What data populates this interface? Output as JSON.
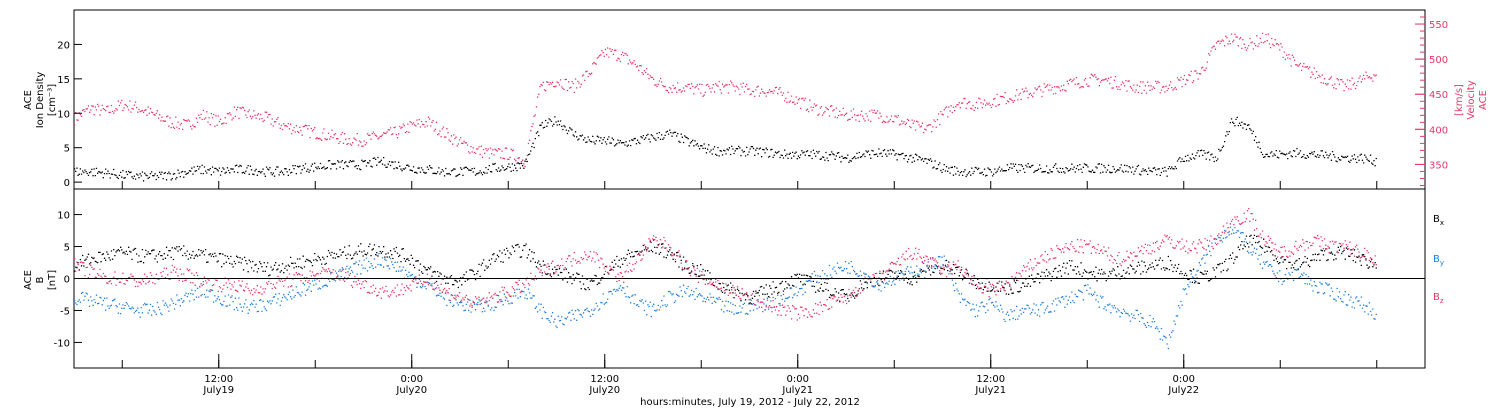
{
  "chart_data": [
    {
      "type": "scatter",
      "panel": "top",
      "ylabel_left_lines": [
        "ACE",
        "Ion Density",
        "[cm⁻³]"
      ],
      "ylabel_right_lines": [
        "ACE",
        "Velocity",
        "[km/s]"
      ],
      "ylim_left": [
        -1,
        25
      ],
      "ylim_right": [
        315,
        570
      ],
      "yticks_left": [
        0,
        5,
        10,
        15,
        20
      ],
      "yticks_right": [
        350,
        400,
        450,
        500,
        550
      ],
      "colors": {
        "density": "#000000",
        "velocity": "#e8376a"
      },
      "series": [
        {
          "axis": "left",
          "color": "#000000",
          "hours": [
            0,
            1,
            2,
            3,
            4,
            5,
            6,
            7,
            8,
            9,
            10,
            11,
            12,
            13,
            14,
            15,
            16,
            17,
            18,
            19,
            20,
            21,
            22,
            23,
            24,
            25,
            26,
            27,
            28,
            29,
            30,
            31,
            32,
            33,
            34,
            35,
            36,
            37,
            38,
            39,
            40,
            41,
            42,
            43,
            44,
            45,
            46,
            47,
            48,
            49,
            50,
            51,
            52,
            53,
            54,
            55,
            56,
            57,
            58,
            59,
            60,
            61,
            62,
            63,
            64,
            65,
            66,
            67,
            68,
            69,
            70,
            71,
            72,
            73,
            74,
            75,
            76,
            77,
            78,
            79,
            80,
            81
          ],
          "values": [
            1.5,
            1.5,
            1.3,
            1.0,
            0.8,
            0.8,
            1.0,
            1.5,
            1.8,
            1.5,
            1.8,
            1.8,
            1.5,
            1.5,
            2.0,
            2.2,
            2.5,
            2.5,
            2.5,
            3.0,
            2.5,
            2.0,
            1.8,
            1.5,
            1.5,
            1.5,
            2.0,
            2.2,
            2.5,
            8.0,
            9.0,
            7.0,
            6.0,
            6.0,
            5.5,
            6.0,
            6.5,
            7.0,
            6.0,
            5.0,
            4.5,
            4.5,
            4.5,
            4.3,
            4.0,
            4.0,
            4.0,
            3.8,
            3.5,
            4.0,
            4.2,
            4.0,
            3.5,
            3.0,
            2.0,
            1.5,
            1.5,
            1.5,
            2.0,
            2.0,
            2.0,
            2.0,
            2.0,
            2.0,
            2.0,
            2.0,
            1.8,
            1.5,
            1.5,
            3.5,
            4.0,
            3.5,
            9.0,
            8.0,
            4.0,
            4.0,
            4.2,
            4.0,
            3.8,
            3.5,
            3.5,
            3.0
          ]
        },
        {
          "axis": "right",
          "color": "#e8376a",
          "hours": [
            0,
            1,
            2,
            3,
            4,
            5,
            6,
            7,
            8,
            9,
            10,
            11,
            12,
            13,
            14,
            15,
            16,
            17,
            18,
            19,
            20,
            21,
            22,
            23,
            24,
            25,
            26,
            27,
            28,
            29,
            30,
            31,
            32,
            33,
            34,
            35,
            36,
            37,
            38,
            39,
            40,
            41,
            42,
            43,
            44,
            45,
            46,
            47,
            48,
            49,
            50,
            51,
            52,
            53,
            54,
            55,
            56,
            57,
            58,
            59,
            60,
            61,
            62,
            63,
            64,
            65,
            66,
            67,
            68,
            69,
            70,
            71,
            72,
            73,
            74,
            75,
            76,
            77,
            78,
            79,
            80,
            81
          ],
          "values": [
            415,
            430,
            425,
            435,
            430,
            420,
            410,
            405,
            420,
            410,
            425,
            420,
            415,
            405,
            400,
            395,
            390,
            385,
            385,
            390,
            395,
            405,
            410,
            395,
            380,
            370,
            365,
            365,
            355,
            460,
            470,
            460,
            480,
            510,
            505,
            490,
            470,
            460,
            460,
            455,
            460,
            460,
            455,
            455,
            450,
            440,
            430,
            425,
            420,
            420,
            420,
            415,
            405,
            400,
            420,
            440,
            435,
            440,
            445,
            450,
            455,
            460,
            465,
            470,
            470,
            465,
            460,
            460,
            460,
            470,
            480,
            520,
            530,
            520,
            530,
            515,
            490,
            480,
            470,
            460,
            470,
            480
          ]
        }
      ]
    },
    {
      "type": "scatter",
      "panel": "bottom",
      "ylabel_left_lines": [
        "ACE",
        "B",
        "[nT]"
      ],
      "ylim": [
        -14,
        14
      ],
      "yticks": [
        -10,
        -5,
        0,
        5,
        10
      ],
      "x_ticks": [
        {
          "hour": 12,
          "time": "12:00",
          "date": "July19"
        },
        {
          "hour": 24,
          "time": "0:00",
          "date": "July20"
        },
        {
          "hour": 36,
          "time": "12:00",
          "date": "July20"
        },
        {
          "hour": 48,
          "time": "0:00",
          "date": "July21"
        },
        {
          "hour": 60,
          "time": "12:00",
          "date": "July21"
        },
        {
          "hour": 72,
          "time": "0:00",
          "date": "July22"
        }
      ],
      "xlim_hours": [
        3,
        87
      ],
      "xlabel": "hours:minutes, July 19, 2012 - July 22, 2012",
      "legend": [
        {
          "label": "B",
          "sub": "x",
          "color": "#000000"
        },
        {
          "label": "B",
          "sub": "y",
          "color": "#1f7fe0"
        },
        {
          "label": "B",
          "sub": "z",
          "color": "#e8376a"
        }
      ],
      "series": [
        {
          "name": "Bx",
          "color": "#000000",
          "hours": [
            0,
            1,
            2,
            3,
            4,
            5,
            6,
            7,
            8,
            9,
            10,
            11,
            12,
            13,
            14,
            15,
            16,
            17,
            18,
            19,
            20,
            21,
            22,
            23,
            24,
            25,
            26,
            27,
            28,
            29,
            30,
            31,
            32,
            33,
            34,
            35,
            36,
            37,
            38,
            39,
            40,
            41,
            42,
            43,
            44,
            45,
            46,
            47,
            48,
            49,
            50,
            51,
            52,
            53,
            54,
            55,
            56,
            57,
            58,
            59,
            60,
            61,
            62,
            63,
            64,
            65,
            66,
            67,
            68,
            69,
            70,
            71,
            72,
            73,
            74,
            75,
            76,
            77,
            78,
            79,
            80,
            81
          ],
          "values": [
            2,
            3,
            3.5,
            4,
            3.5,
            3.5,
            4,
            4,
            3.5,
            3,
            2.5,
            2,
            1.5,
            2,
            2.5,
            3,
            3.5,
            4,
            4.5,
            4.5,
            4,
            3,
            1,
            0,
            -0.5,
            1,
            3,
            4,
            4.5,
            2,
            1,
            0,
            -1,
            1,
            3,
            4,
            5,
            4,
            2,
            1,
            -1,
            -2,
            -3,
            -2,
            -1,
            0,
            -1,
            -2,
            -3,
            -1,
            0,
            0.5,
            0,
            1,
            2,
            1,
            -0.5,
            -1,
            -1.5,
            -1,
            0,
            1,
            2,
            1,
            0.5,
            1,
            1.5,
            2,
            2.5,
            1,
            0,
            1,
            3,
            6,
            5,
            3,
            2,
            3,
            4,
            4,
            3,
            2
          ]
        },
        {
          "name": "By",
          "color": "#1f7fe0",
          "hours": [
            0,
            1,
            2,
            3,
            4,
            5,
            6,
            7,
            8,
            9,
            10,
            11,
            12,
            13,
            14,
            15,
            16,
            17,
            18,
            19,
            20,
            21,
            22,
            23,
            24,
            25,
            26,
            27,
            28,
            29,
            30,
            31,
            32,
            33,
            34,
            35,
            36,
            37,
            38,
            39,
            40,
            41,
            42,
            43,
            44,
            45,
            46,
            47,
            48,
            49,
            50,
            51,
            52,
            53,
            54,
            55,
            56,
            57,
            58,
            59,
            60,
            61,
            62,
            63,
            64,
            65,
            66,
            67,
            68,
            69,
            70,
            71,
            72,
            73,
            74,
            75,
            76,
            77,
            78,
            79,
            80,
            81
          ],
          "values": [
            -3,
            -3.5,
            -4,
            -4.5,
            -5,
            -5,
            -4,
            -3,
            -2,
            -3,
            -4,
            -4.5,
            -4,
            -3,
            -2,
            -1,
            0,
            1,
            2,
            3,
            2,
            0,
            -1,
            -3,
            -4,
            -4.5,
            -4,
            -3,
            -2,
            -5,
            -7,
            -6,
            -5,
            -3,
            -1,
            -4,
            -5,
            -3,
            -2,
            -3,
            -4,
            -5,
            -4.5,
            -4,
            -3,
            -2,
            0,
            1,
            2,
            1,
            -1,
            0,
            1,
            2,
            3,
            -3,
            -5,
            -4,
            -6,
            -5,
            -5,
            -4,
            -3,
            -2,
            -4,
            -5,
            -6,
            -7,
            -10,
            -2,
            2,
            6,
            8,
            5,
            2,
            0,
            1,
            -1,
            -2,
            -3,
            -4,
            -5.5
          ]
        },
        {
          "name": "Bz",
          "color": "#e8376a",
          "hours": [
            0,
            1,
            2,
            3,
            4,
            5,
            6,
            7,
            8,
            9,
            10,
            11,
            12,
            13,
            14,
            15,
            16,
            17,
            18,
            19,
            20,
            21,
            22,
            23,
            24,
            25,
            26,
            27,
            28,
            29,
            30,
            31,
            32,
            33,
            34,
            35,
            36,
            37,
            38,
            39,
            40,
            41,
            42,
            43,
            44,
            45,
            46,
            47,
            48,
            49,
            50,
            51,
            52,
            53,
            54,
            55,
            56,
            57,
            58,
            59,
            60,
            61,
            62,
            63,
            64,
            65,
            66,
            67,
            68,
            69,
            70,
            71,
            72,
            73,
            74,
            75,
            76,
            77,
            78,
            79,
            80,
            81
          ],
          "values": [
            2,
            1,
            0,
            0,
            -0.5,
            0,
            1,
            0.5,
            -0.5,
            -1,
            -1,
            -2,
            -1,
            -0.5,
            0,
            0.5,
            1,
            0,
            -1,
            -2,
            -2,
            -1,
            0,
            -2,
            -3,
            -4,
            -3,
            -2,
            -1,
            1,
            2,
            3,
            4,
            2,
            0,
            3,
            6,
            5,
            2,
            0,
            -1,
            -2,
            -3,
            -4,
            -5,
            -5.5,
            -5,
            -4,
            -3,
            -1,
            0,
            2,
            4,
            3,
            1,
            2,
            -1,
            -2,
            -1,
            1,
            3,
            4,
            5,
            5,
            4,
            3,
            4,
            5,
            6,
            5,
            5,
            6,
            9,
            10,
            6,
            4,
            5,
            6,
            5,
            5,
            4,
            3
          ]
        }
      ]
    }
  ]
}
